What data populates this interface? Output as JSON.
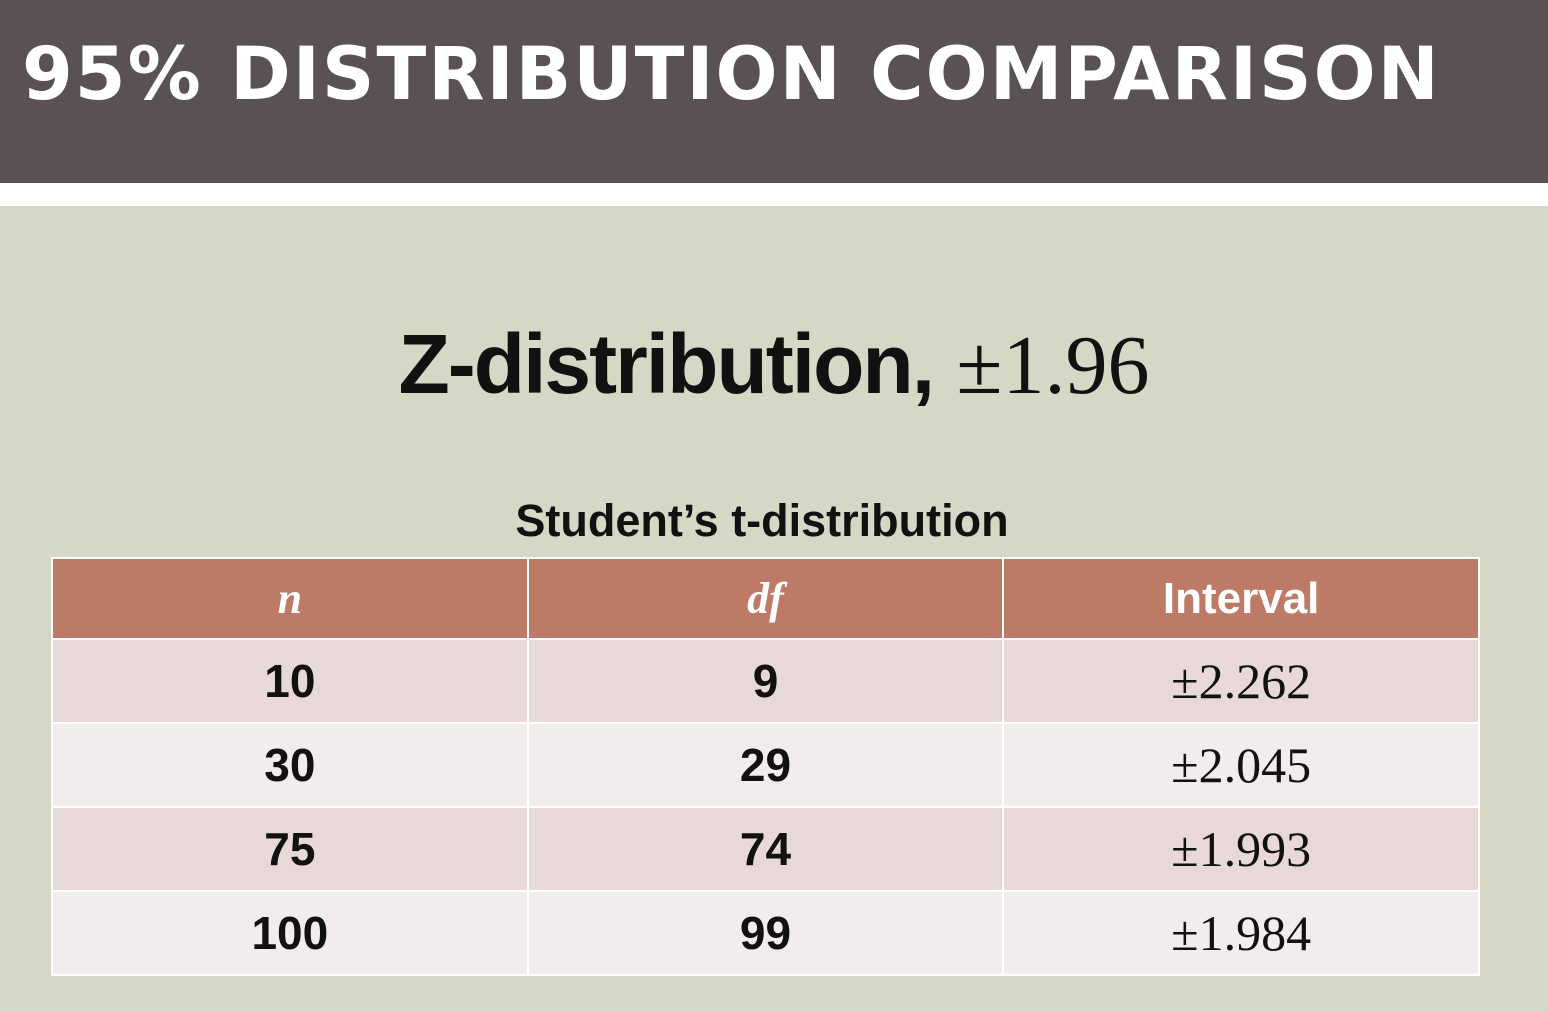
{
  "slide": {
    "title": "95% DISTRIBUTION COMPARISON",
    "z_label": "Z-distribution,",
    "z_value": "±1.96",
    "t_caption": "Student’s t-distribution"
  },
  "table": {
    "headers": [
      "n",
      "df",
      "Interval"
    ],
    "rows": [
      [
        "10",
        "9",
        "±2.262"
      ],
      [
        "30",
        "29",
        "±2.045"
      ],
      [
        "75",
        "74",
        "±1.993"
      ],
      [
        "100",
        "99",
        "±1.984"
      ]
    ]
  },
  "colors": {
    "title_bar": "#595153",
    "background": "#d6d7c4",
    "header_row": "#bd7a66",
    "row_odd": "#e8d9d8",
    "row_even": "#f3ecec"
  }
}
